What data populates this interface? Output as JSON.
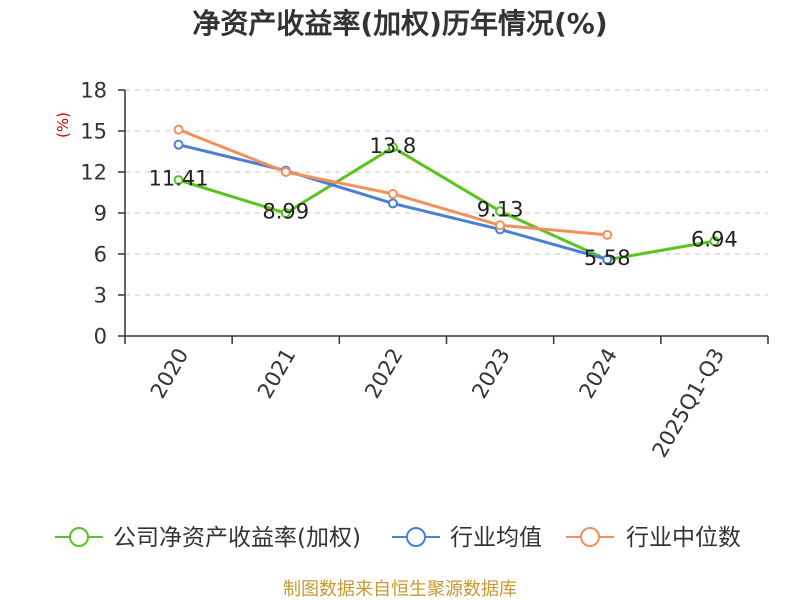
{
  "chart_data": {
    "type": "line",
    "title": "净资产收益率(加权)历年情况(%)",
    "xlabel": "",
    "ylabel": "(%)",
    "ylim": [
      0,
      18
    ],
    "yticks": [
      0,
      3,
      6,
      9,
      12,
      15,
      18
    ],
    "grid": true,
    "legend": "bottom",
    "categories": [
      "2020",
      "2021",
      "2022",
      "2023",
      "2024",
      "2025Q1-Q3"
    ],
    "series": [
      {
        "name": "公司净资产收益率(加权)",
        "color": "#57c41f",
        "show_labels": true,
        "values": [
          11.41,
          8.99,
          13.8,
          9.13,
          5.58,
          6.94
        ]
      },
      {
        "name": "行业均值",
        "color": "#4a7fd5",
        "show_labels": false,
        "values": [
          14.0,
          12.1,
          9.7,
          7.8,
          5.6,
          null
        ]
      },
      {
        "name": "行业中位数",
        "color": "#f5905c",
        "show_labels": false,
        "values": [
          15.1,
          12.0,
          10.4,
          8.1,
          7.4,
          null
        ]
      }
    ]
  },
  "source_note": "制图数据来自恒生聚源数据库"
}
